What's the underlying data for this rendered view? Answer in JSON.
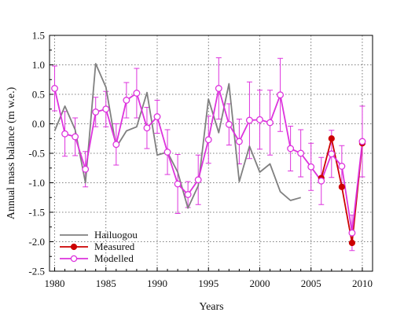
{
  "chart_data": {
    "type": "line",
    "title": "",
    "xlabel": "Years",
    "ylabel": "Annual mass balance (m w.e.)",
    "xlim": [
      1979.5,
      2011
    ],
    "ylim": [
      -2.5,
      1.5
    ],
    "xticks": [
      1980,
      1985,
      1990,
      1995,
      2000,
      2005,
      2010
    ],
    "yticks": [
      -2.5,
      -2.0,
      -1.5,
      -1.0,
      -0.5,
      0.0,
      0.5,
      1.0,
      1.5
    ],
    "ytick_labels": [
      "-2.5",
      "-2.0",
      "-1.5",
      "-1.0",
      "-0.5",
      "0.0",
      "0.5",
      "1.0",
      "1.5"
    ],
    "grid": true,
    "legend_position": "bottom-left",
    "series": [
      {
        "name": "Hailuogou",
        "color": "#808080",
        "marker": "none",
        "x": [
          1980,
          1981,
          1982,
          1983,
          1984,
          1985,
          1986,
          1987,
          1988,
          1989,
          1990,
          1991,
          1992,
          1993,
          1994,
          1995,
          1996,
          1997,
          1998,
          1999,
          2000,
          2001,
          2002,
          2003,
          2004
        ],
        "y": [
          -0.12,
          0.3,
          -0.1,
          -1.0,
          1.02,
          0.62,
          -0.4,
          -0.12,
          -0.05,
          0.53,
          -0.53,
          -0.48,
          -0.82,
          -1.43,
          -1.05,
          0.42,
          -0.15,
          0.68,
          -0.98,
          -0.38,
          -0.82,
          -0.68,
          -1.15,
          -1.3,
          -1.25
        ]
      },
      {
        "name": "Measured",
        "color": "#cc0000",
        "marker": "filled-circle",
        "x": [
          2006,
          2007,
          2008,
          2009,
          2010
        ],
        "y": [
          -0.92,
          -0.25,
          -1.07,
          -2.02,
          -0.33
        ]
      },
      {
        "name": "Modelled",
        "color": "#dd33dd",
        "marker": "open-circle",
        "x": [
          1980,
          1981,
          1982,
          1983,
          1984,
          1985,
          1986,
          1987,
          1988,
          1989,
          1990,
          1991,
          1992,
          1993,
          1994,
          1995,
          1996,
          1997,
          1998,
          1999,
          2000,
          2001,
          2002,
          2003,
          2004,
          2005,
          2006,
          2007,
          2008,
          2009,
          2010
        ],
        "y": [
          0.6,
          -0.17,
          -0.22,
          -0.77,
          0.2,
          0.25,
          -0.35,
          0.4,
          0.52,
          -0.07,
          0.12,
          -0.48,
          -1.02,
          -1.2,
          -0.95,
          -0.27,
          0.6,
          -0.01,
          -0.3,
          0.06,
          0.07,
          0.02,
          0.49,
          -0.42,
          -0.5,
          -0.73,
          -0.97,
          -0.51,
          -0.72,
          -1.85,
          -0.3
        ],
        "error": [
          0.38,
          0.38,
          0.32,
          0.3,
          0.25,
          0.3,
          0.35,
          0.3,
          0.42,
          0.35,
          0.28,
          0.38,
          0.5,
          0.22,
          0.42,
          0.4,
          0.52,
          0.35,
          0.38,
          0.65,
          0.5,
          0.55,
          0.62,
          0.38,
          0.4,
          0.4,
          0.4,
          0.4,
          0.35,
          0.3,
          0.6
        ]
      }
    ]
  }
}
